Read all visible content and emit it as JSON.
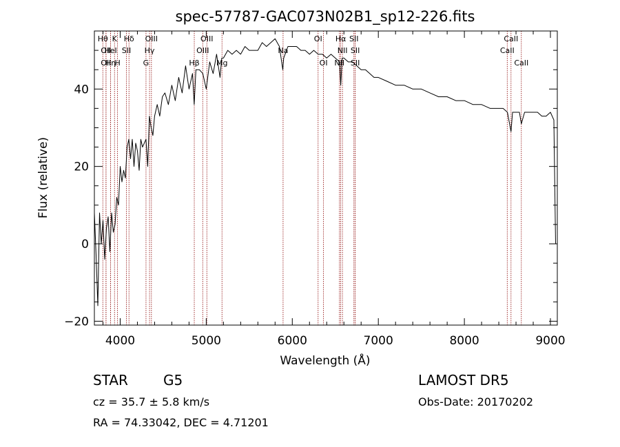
{
  "chart_data": {
    "type": "line",
    "title": "spec-57787-GAC073N02B1_sp12-226.fits",
    "xlabel": "Wavelength (Å)",
    "ylabel": "Flux (relative)",
    "xlim": [
      3700,
      9080
    ],
    "ylim": [
      -21,
      55
    ],
    "xticks": [
      4000,
      5000,
      6000,
      7000,
      8000,
      9000
    ],
    "yticks": [
      -20,
      0,
      20,
      40
    ],
    "grid": false,
    "series": [
      {
        "x": [
          3700,
          3720,
          3740,
          3760,
          3780,
          3800,
          3820,
          3840,
          3860,
          3880,
          3900,
          3920,
          3940,
          3960,
          3980,
          4000,
          4020,
          4040,
          4060,
          4080,
          4100,
          4120,
          4140,
          4160,
          4180,
          4200,
          4220,
          4240,
          4260,
          4280,
          4300,
          4320,
          4340,
          4360,
          4380,
          4400,
          4430,
          4460,
          4490,
          4520,
          4560,
          4600,
          4640,
          4680,
          4720,
          4760,
          4800,
          4840,
          4860,
          4880,
          4920,
          4960,
          5000,
          5040,
          5080,
          5120,
          5160,
          5180,
          5200,
          5250,
          5300,
          5350,
          5400,
          5450,
          5500,
          5550,
          5600,
          5650,
          5700,
          5750,
          5800,
          5850,
          5890,
          5900,
          5950,
          6000,
          6050,
          6100,
          6150,
          6200,
          6250,
          6300,
          6350,
          6400,
          6450,
          6500,
          6550,
          6563,
          6580,
          6600,
          6650,
          6700,
          6750,
          6800,
          6850,
          6900,
          6950,
          7000,
          7100,
          7200,
          7300,
          7400,
          7500,
          7600,
          7700,
          7800,
          7900,
          8000,
          8100,
          8200,
          8300,
          8400,
          8450,
          8500,
          8542,
          8560,
          8600,
          8640,
          8662,
          8700,
          8750,
          8800,
          8850,
          8900,
          8950,
          9000,
          9040,
          9060
        ],
        "values": [
          8,
          -3,
          -16,
          8,
          0,
          6,
          -4,
          4,
          7,
          -2,
          8,
          3,
          5,
          12,
          10,
          20,
          16,
          19,
          17,
          25,
          27,
          22,
          27,
          20,
          26,
          24,
          19,
          27,
          25,
          26,
          27,
          20,
          33,
          30,
          28,
          33,
          36,
          33,
          38,
          39,
          36,
          41,
          37,
          43,
          39,
          46,
          40,
          44,
          36,
          45,
          45,
          44,
          40,
          47,
          44,
          49,
          43,
          48,
          48,
          50,
          49,
          50,
          49,
          51,
          50,
          50,
          50,
          52,
          51,
          52,
          53,
          51,
          45,
          48,
          51,
          51,
          51,
          50,
          50,
          49,
          50,
          49,
          49,
          48,
          49,
          48,
          47,
          41,
          48,
          48,
          47,
          47,
          46,
          45,
          45,
          44,
          43,
          43,
          42,
          41,
          41,
          40,
          40,
          39,
          38,
          38,
          37,
          37,
          36,
          36,
          35,
          35,
          35,
          34,
          29,
          34,
          34,
          34,
          31,
          34,
          34,
          34,
          34,
          33,
          33,
          34,
          32,
          0
        ]
      }
    ],
    "line_ids": [
      {
        "x": 3798,
        "label": "Hθ",
        "row": 0
      },
      {
        "x": 3835,
        "label": "OII",
        "row": 1
      },
      {
        "x": 3835,
        "label": "OII",
        "row": 2
      },
      {
        "x": 3889,
        "label": "Hη",
        "row": 2
      },
      {
        "x": 3889,
        "label": "HeI",
        "row": 1
      },
      {
        "x": 3934,
        "label": "K",
        "row": 0
      },
      {
        "x": 3969,
        "label": "H",
        "row": 2
      },
      {
        "x": 4072,
        "label": "SII",
        "row": 1
      },
      {
        "x": 4102,
        "label": "Hδ",
        "row": 0
      },
      {
        "x": 4300,
        "label": "G",
        "row": 2
      },
      {
        "x": 4341,
        "label": "Hγ",
        "row": 1
      },
      {
        "x": 4363,
        "label": "OIII",
        "row": 0
      },
      {
        "x": 4861,
        "label": "Hβ",
        "row": 2
      },
      {
        "x": 4959,
        "label": "OIII",
        "row": 1
      },
      {
        "x": 5007,
        "label": "OIII",
        "row": 0
      },
      {
        "x": 5183,
        "label": "Mg",
        "row": 2
      },
      {
        "x": 5893,
        "label": "Na",
        "row": 1
      },
      {
        "x": 6300,
        "label": "OI",
        "row": 0
      },
      {
        "x": 6363,
        "label": "OI",
        "row": 2
      },
      {
        "x": 6548,
        "label": "NII",
        "row": 2
      },
      {
        "x": 6563,
        "label": "Hα",
        "row": 0
      },
      {
        "x": 6583,
        "label": "NII",
        "row": 1
      },
      {
        "x": 6716,
        "label": "SII",
        "row": 0
      },
      {
        "x": 6731,
        "label": "SII",
        "row": 1
      },
      {
        "x": 6731,
        "label": "SII",
        "row": 2
      },
      {
        "x": 8498,
        "label": "CaII",
        "row": 1
      },
      {
        "x": 8542,
        "label": "CaII",
        "row": 0
      },
      {
        "x": 8662,
        "label": "CaII",
        "row": 2
      }
    ],
    "line_color": "#8b0000",
    "trace_color": "#000000"
  },
  "info": {
    "class": "STAR",
    "subclass": "G5",
    "survey": "LAMOST DR5",
    "cz": "cz = 35.7 ± 5.8 km/s",
    "obs_date": "Obs-Date: 20170202",
    "coords": "RA =  74.33042, DEC =    4.71201"
  }
}
